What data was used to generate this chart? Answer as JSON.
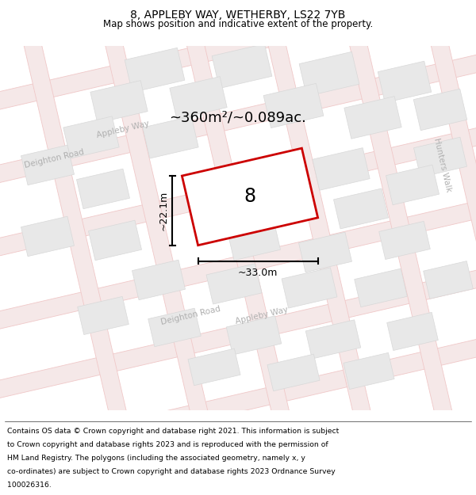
{
  "title": "8, APPLEBY WAY, WETHERBY, LS22 7YB",
  "subtitle": "Map shows position and indicative extent of the property.",
  "footer_lines": [
    "Contains OS data © Crown copyright and database right 2021. This information is subject",
    "to Crown copyright and database rights 2023 and is reproduced with the permission of",
    "HM Land Registry. The polygons (including the associated geometry, namely x, y",
    "co-ordinates) are subject to Crown copyright and database rights 2023 Ordnance Survey",
    "100026316."
  ],
  "map_bg": "#f8f8f8",
  "road_line_color": "#f0c8c8",
  "road_fill_color": "#f5e8e8",
  "block_color": "#e8e8e8",
  "block_edge_color": "#d8d8d8",
  "property_fill": "#ffffff",
  "property_edge": "#cc0000",
  "area_text": "~360m²/~0.089ac.",
  "property_number": "8",
  "dim_width": "~33.0m",
  "dim_height": "~22.1m",
  "road_label_color": "#b0b0b0",
  "ang": 13
}
